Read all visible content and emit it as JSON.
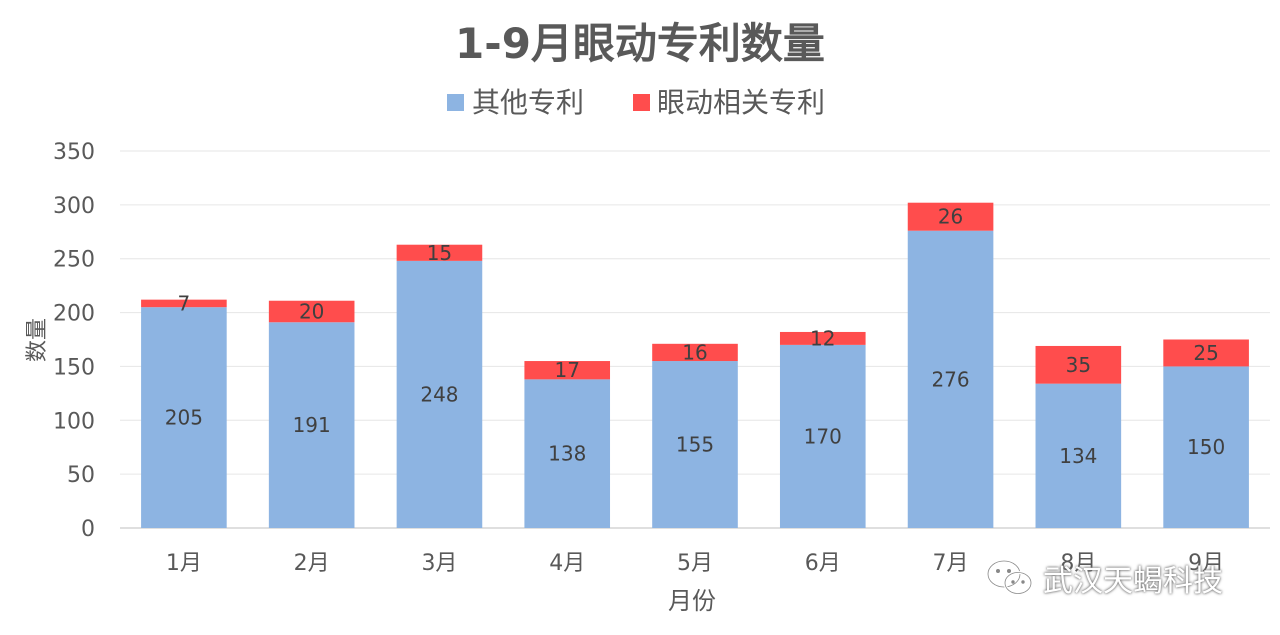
{
  "chart_data": {
    "type": "bar",
    "stacked": true,
    "title": "1-9月眼动专利数量",
    "xlabel": "月份",
    "ylabel": "数量",
    "categories": [
      "1月",
      "2月",
      "3月",
      "4月",
      "5月",
      "6月",
      "7月",
      "8月",
      "9月"
    ],
    "series": [
      {
        "name": "其他专利",
        "color": "#8DB4E2",
        "values": [
          205,
          191,
          248,
          138,
          155,
          170,
          276,
          134,
          150
        ]
      },
      {
        "name": "眼动相关专利",
        "color": "#FF4D4D",
        "values": [
          7,
          20,
          15,
          17,
          16,
          12,
          26,
          35,
          25
        ]
      }
    ],
    "ylim": [
      0,
      350
    ],
    "yticks": [
      0,
      50,
      100,
      150,
      200,
      250,
      300,
      350
    ],
    "grid": true,
    "legend_position": "top"
  },
  "watermark": {
    "text": "武汉天蝎科技",
    "icon": "wechat-icon"
  }
}
